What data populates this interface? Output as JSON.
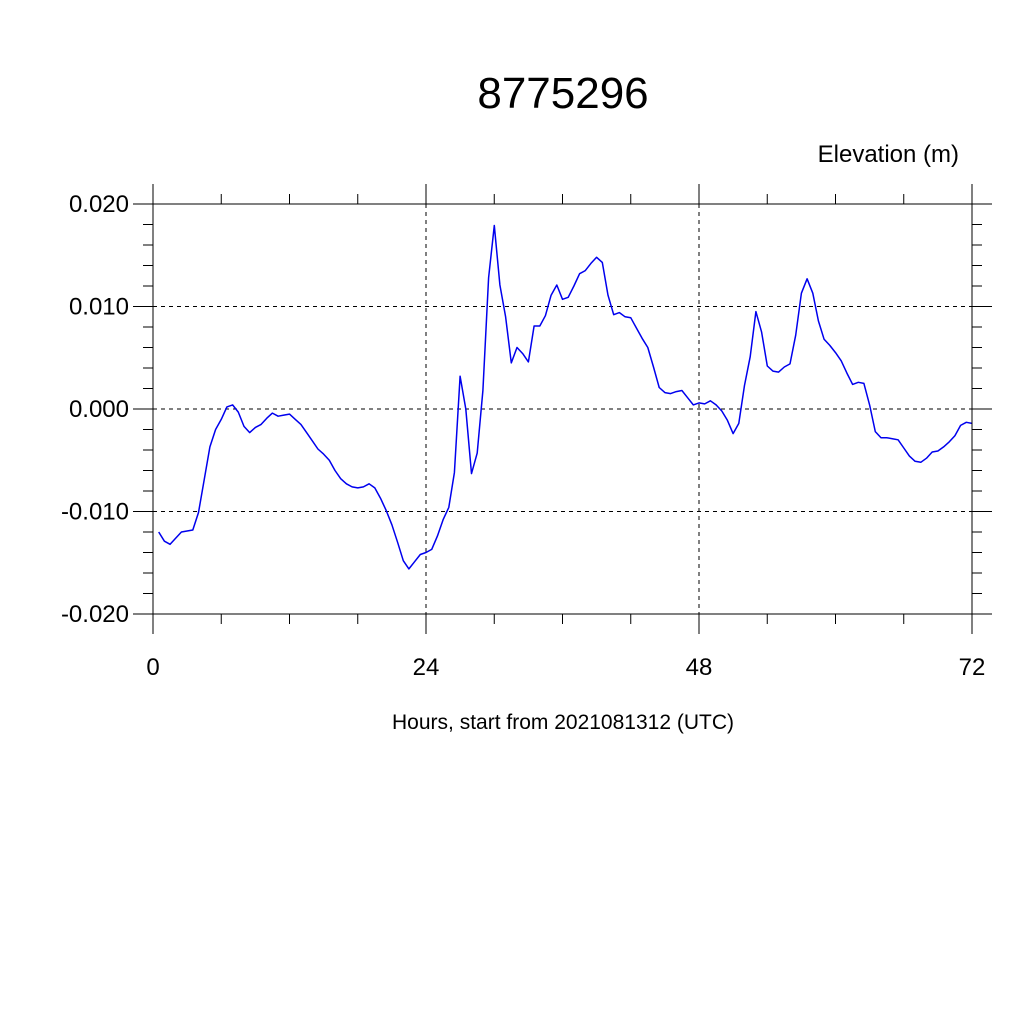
{
  "chart_data": {
    "type": "line",
    "title": "8775296",
    "ylabel": "Elevation (m)",
    "xlabel": "Hours, start from 2021081312 (UTC)",
    "xlim": [
      0,
      72
    ],
    "ylim": [
      -0.02,
      0.02
    ],
    "x_ticks": [
      0,
      24,
      48,
      72
    ],
    "x_tick_labels": [
      "0",
      "24",
      "48",
      "72"
    ],
    "y_ticks": [
      -0.02,
      -0.01,
      0.0,
      0.01,
      0.02
    ],
    "y_tick_labels": [
      "-0.020",
      "-0.010",
      "0.000",
      "0.010",
      "0.020"
    ],
    "grid": true,
    "line_color": "#0000ee",
    "series": [
      {
        "x": [
          0.5,
          1.0,
          1.5,
          2.5,
          3.5,
          4.0,
          4.5,
          5.0,
          5.5,
          6.0,
          6.5,
          7.0,
          7.5,
          8.0,
          8.5,
          9.0,
          9.5,
          10.0,
          10.5,
          11.0,
          11.5,
          12.0,
          12.5,
          13.0,
          13.5,
          14.0,
          14.5,
          15.0,
          15.5,
          16.0,
          16.5,
          17.0,
          17.5,
          18.0,
          18.5,
          19.0,
          19.5,
          20.0,
          20.5,
          21.0,
          21.5,
          22.0,
          22.5,
          23.0,
          23.5,
          24.0,
          24.5,
          25.0,
          25.5,
          26.0,
          26.5,
          27.0,
          27.5,
          28.0,
          28.5,
          29.0,
          29.5,
          30.0,
          30.5,
          31.0,
          31.5,
          32.0,
          32.5,
          33.0,
          33.5,
          34.0,
          34.5,
          35.0,
          35.5,
          36.0,
          36.5,
          37.0,
          37.5,
          38.0,
          38.5,
          39.0,
          39.5,
          40.0,
          40.5,
          41.0,
          41.5,
          42.0,
          42.5,
          43.0,
          43.5,
          44.0,
          44.5,
          45.0,
          45.5,
          46.0,
          46.5,
          47.0,
          47.5,
          48.0,
          48.5,
          49.0,
          49.5,
          50.0,
          50.5,
          51.0,
          51.5,
          52.0,
          52.5,
          53.0,
          53.5,
          54.0,
          54.5,
          55.0,
          55.5,
          56.0,
          56.5,
          57.0,
          57.5,
          58.0,
          58.5,
          59.0,
          59.5,
          60.0,
          60.5,
          61.0,
          61.5,
          62.0,
          62.5,
          63.0,
          63.5,
          64.0,
          64.5,
          65.0,
          65.5,
          66.0,
          66.5,
          67.0,
          67.5,
          68.0,
          68.5,
          69.0,
          69.5,
          70.0,
          70.5,
          71.0,
          71.5,
          72.0
        ],
        "y": [
          -0.012,
          -0.0129,
          -0.0132,
          -0.012,
          -0.0118,
          -0.0101,
          -0.0069,
          -0.0037,
          -0.002,
          -0.001,
          0.0002,
          0.0004,
          -0.0003,
          -0.0017,
          -0.0023,
          -0.0018,
          -0.0015,
          -0.0009,
          -0.0004,
          -0.0007,
          -0.0006,
          -0.0005,
          -0.001,
          -0.0015,
          -0.0023,
          -0.0031,
          -0.0039,
          -0.0044,
          -0.005,
          -0.006,
          -0.0068,
          -0.0073,
          -0.0076,
          -0.0077,
          -0.0076,
          -0.0073,
          -0.0077,
          -0.0087,
          -0.0099,
          -0.0113,
          -0.013,
          -0.0148,
          -0.0156,
          -0.0149,
          -0.0142,
          -0.014,
          -0.0137,
          -0.0124,
          -0.0108,
          -0.0096,
          -0.0062,
          0.0032,
          0.0,
          -0.0063,
          -0.0043,
          0.0018,
          0.0128,
          0.0179,
          0.0121,
          0.009,
          0.0045,
          0.006,
          0.0054,
          0.0046,
          0.0081,
          0.0081,
          0.0091,
          0.0111,
          0.0121,
          0.0107,
          0.0109,
          0.012,
          0.0132,
          0.0135,
          0.0142,
          0.0148,
          0.0143,
          0.0111,
          0.0092,
          0.0094,
          0.009,
          0.0089,
          0.0079,
          0.0069,
          0.006,
          0.0041,
          0.0021,
          0.0016,
          0.0015,
          0.0017,
          0.0018,
          0.0011,
          0.0004,
          0.0006,
          0.0005,
          0.0008,
          0.0004,
          -0.0002,
          -0.0011,
          -0.0024,
          -0.0014,
          0.0023,
          0.0051,
          0.0095,
          0.0075,
          0.0042,
          0.0037,
          0.0036,
          0.0041,
          0.0044,
          0.0072,
          0.0113,
          0.0127,
          0.0113,
          0.0086,
          0.0068,
          0.0062,
          0.0055,
          0.0047,
          0.0035,
          0.0024,
          0.0026,
          0.0025,
          0.0004,
          -0.0022,
          -0.0028,
          -0.0028,
          -0.0029,
          -0.003,
          -0.0038,
          -0.0046,
          -0.0051,
          -0.0052,
          -0.0048,
          -0.0042,
          -0.0041,
          -0.0037,
          -0.0032,
          -0.0026,
          -0.0016,
          -0.0013,
          -0.0014
        ]
      }
    ]
  }
}
